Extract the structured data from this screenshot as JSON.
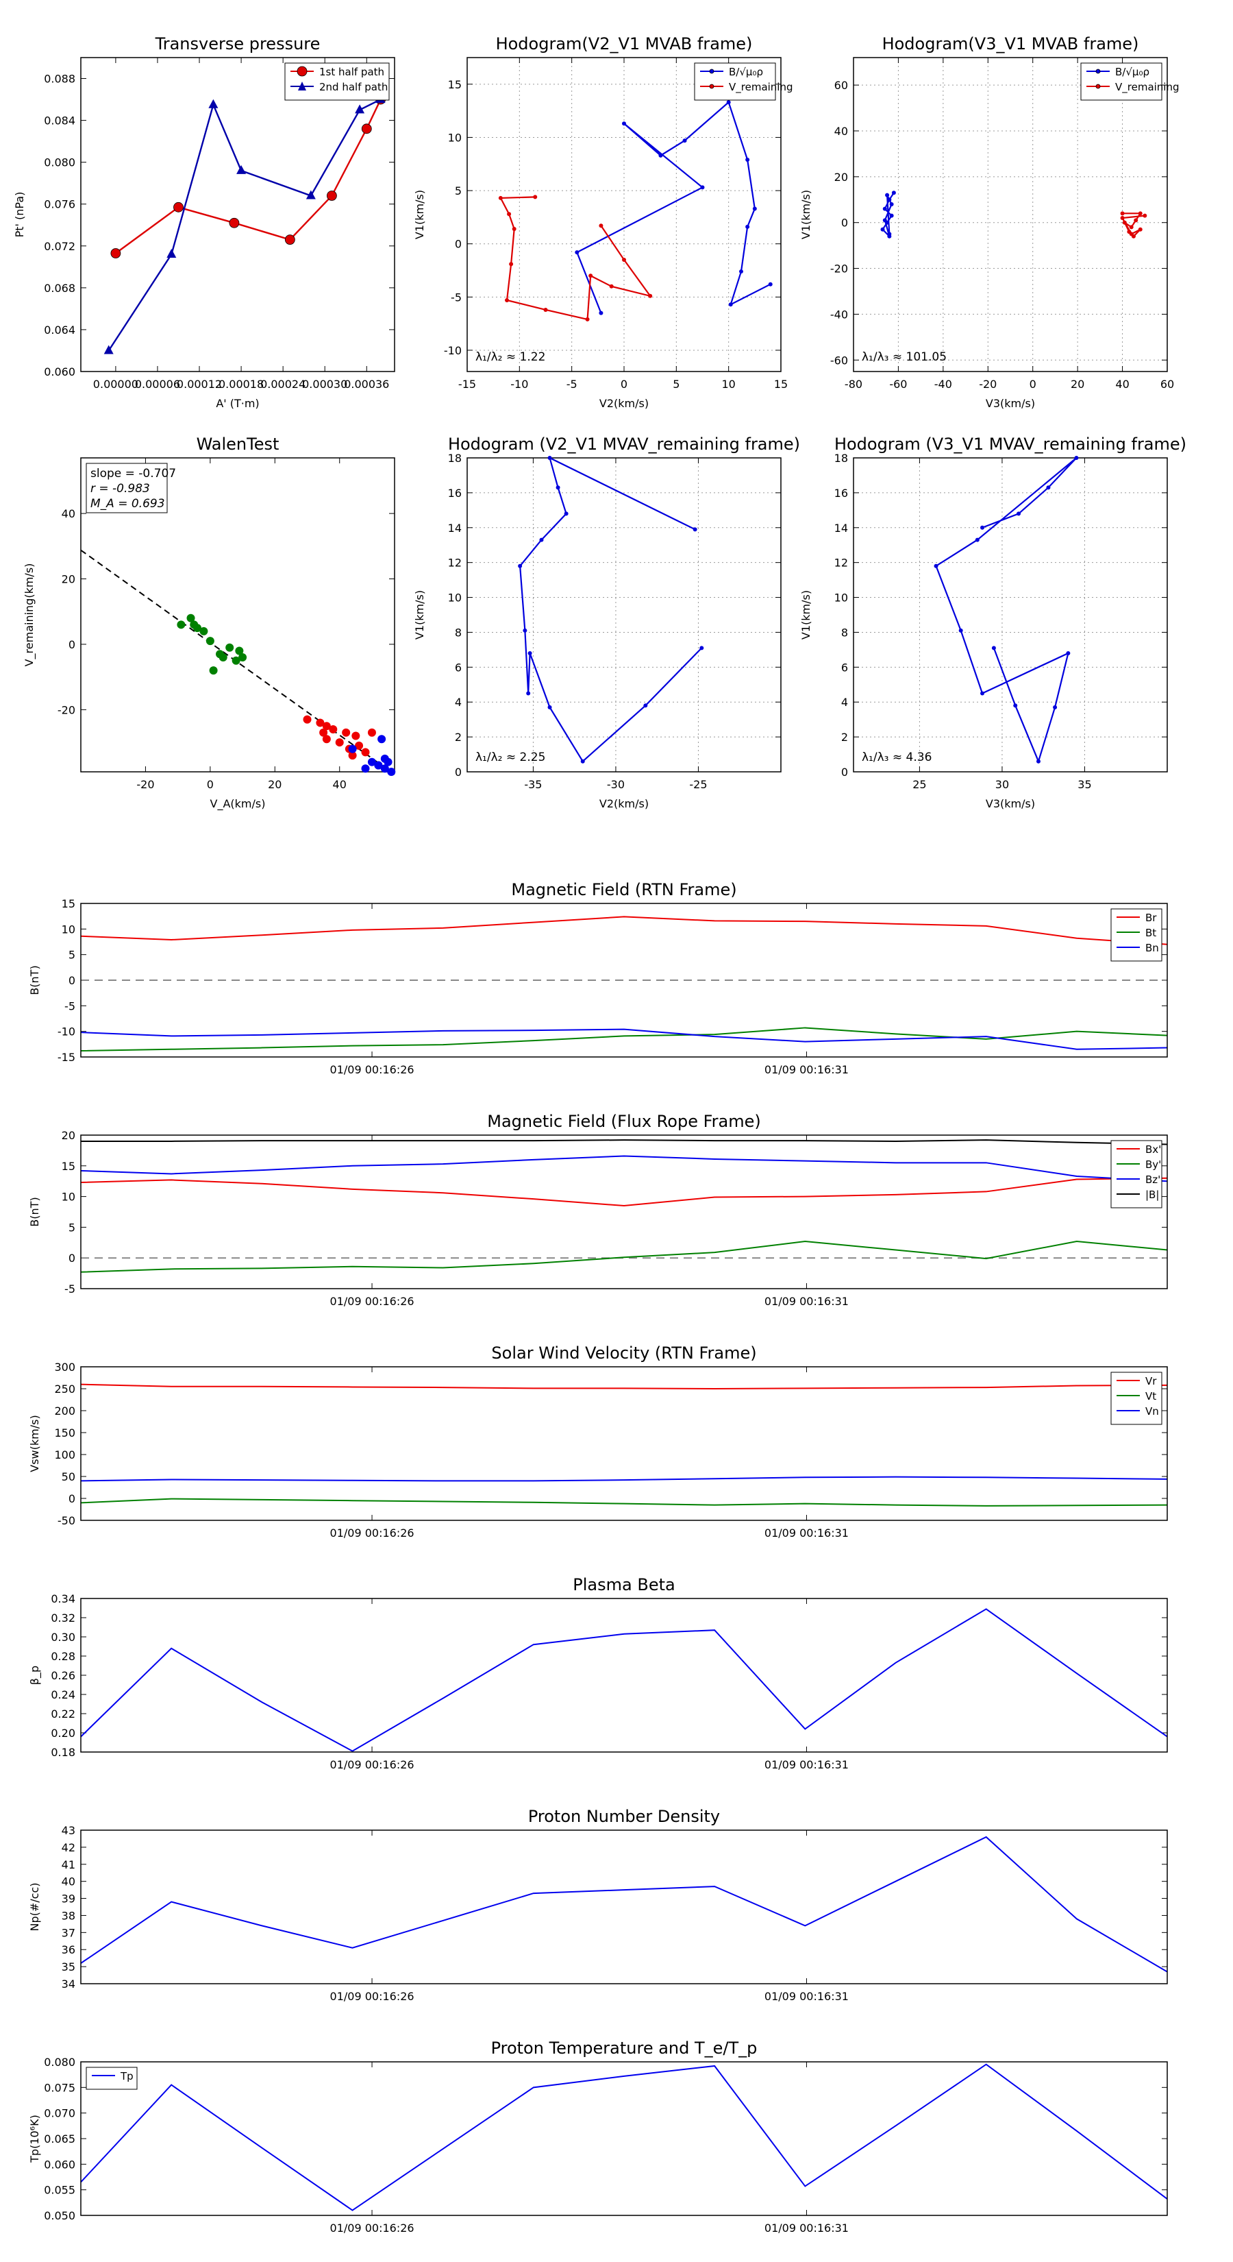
{
  "time_labels": {
    "t1": "01/09 00:16:26",
    "t2": "01/09 00:16:31"
  },
  "chart_data": [
    {
      "id": "tp",
      "type": "line",
      "title": "Transverse pressure",
      "xlabel": "A' (T·m)",
      "ylabel": "Pt' (nPa)",
      "xlim": [
        -5e-05,
        0.0004
      ],
      "ylim": [
        0.06,
        0.09
      ],
      "xticks": [
        "0.00000",
        "0.00006",
        "0.00012",
        "0.00018",
        "0.00024",
        "0.00030",
        "0.00036"
      ],
      "xtick_values": [
        0,
        6e-05,
        0.00012,
        0.00018,
        0.00024,
        0.0003,
        0.00036
      ],
      "yticks": [
        "0.060",
        "0.064",
        "0.068",
        "0.072",
        "0.076",
        "0.080",
        "0.084",
        "0.088"
      ],
      "ytick_values": [
        0.06,
        0.064,
        0.068,
        0.072,
        0.076,
        0.08,
        0.084,
        0.088
      ],
      "legend": "top-right",
      "series": [
        {
          "name": "1st half path",
          "color": "#dd0000",
          "marker": "circle",
          "x": [
            0.0,
            9e-05,
            0.00017,
            0.00025,
            0.00031,
            0.00036,
            0.00038
          ],
          "y": [
            0.0713,
            0.0757,
            0.0742,
            0.0726,
            0.0768,
            0.0832,
            0.086
          ]
        },
        {
          "name": "2nd half path",
          "color": "#0000aa",
          "marker": "triangle",
          "x": [
            -1e-05,
            8e-05,
            0.00014,
            0.00018,
            0.00028,
            0.00035,
            0.00038
          ],
          "y": [
            0.062,
            0.0712,
            0.0855,
            0.0792,
            0.0768,
            0.085,
            0.086
          ]
        }
      ]
    },
    {
      "id": "h1",
      "type": "line",
      "title": "Hodogram(V2_V1 MVAB frame)",
      "xlabel": "V2(km/s)",
      "ylabel": "V1(km/s)",
      "xlim": [
        -15,
        15
      ],
      "ylim": [
        -12,
        17.5
      ],
      "xticks": [
        "-15",
        "-10",
        "-5",
        "0",
        "5",
        "10",
        "15"
      ],
      "xtick_values": [
        -15,
        -10,
        -5,
        0,
        5,
        10,
        15
      ],
      "yticks": [
        "-10",
        "-5",
        "0",
        "5",
        "10",
        "15"
      ],
      "ytick_values": [
        -10,
        -5,
        0,
        5,
        10,
        15
      ],
      "grid": true,
      "legend": "top-right",
      "annotation": "λ₁/λ₂ ≈ 1.22",
      "series": [
        {
          "name": "B/√μ₀ρ",
          "color": "#0000dd",
          "x": [
            -2.2,
            -4.5,
            7.5,
            0,
            3.5,
            5.8,
            10,
            11.8,
            12.5,
            11.8,
            11.2,
            10.2,
            14
          ],
          "y": [
            -6.5,
            -0.8,
            5.3,
            11.3,
            8.3,
            9.7,
            13.3,
            7.9,
            3.3,
            1.6,
            -2.6,
            -5.7,
            -3.8
          ]
        },
        {
          "name": "V_remaining",
          "color": "#dd0000",
          "x": [
            -8.5,
            -11.8,
            -11,
            -10.5,
            -10.8,
            -11.2,
            -7.5,
            -3.5,
            -3.2,
            -1.2,
            2.5,
            0,
            -2.2
          ],
          "y": [
            4.4,
            4.3,
            2.8,
            1.4,
            -1.9,
            -5.3,
            -6.2,
            -7.1,
            -3.0,
            -4.0,
            -4.9,
            -1.5,
            1.7
          ]
        }
      ]
    },
    {
      "id": "h2",
      "type": "line",
      "title": "Hodogram(V3_V1 MVAB frame)",
      "xlabel": "V3(km/s)",
      "ylabel": "V1(km/s)",
      "xlim": [
        -80,
        60
      ],
      "ylim": [
        -65,
        72
      ],
      "xticks": [
        "-80",
        "-60",
        "-40",
        "-20",
        "0",
        "20",
        "40",
        "60"
      ],
      "xtick_values": [
        -80,
        -60,
        -40,
        -20,
        0,
        20,
        40,
        60
      ],
      "yticks": [
        "-60",
        "-40",
        "-20",
        "0",
        "20",
        "40",
        "60"
      ],
      "ytick_values": [
        -60,
        -40,
        -20,
        0,
        20,
        40,
        60
      ],
      "grid": true,
      "legend": "top-right",
      "annotation": "λ₁/λ₃ ≈ 101.05",
      "series": [
        {
          "name": "B/√μ₀ρ",
          "color": "#0000dd",
          "x": [
            -62,
            -64,
            -66,
            -63,
            -65,
            -67,
            -64,
            -66,
            -63,
            -65,
            -64
          ],
          "y": [
            13,
            10,
            6,
            3,
            0,
            -3,
            -6,
            1,
            8,
            12,
            -5
          ]
        },
        {
          "name": "V_remaining",
          "color": "#dd0000",
          "x": [
            40,
            48,
            46,
            44,
            41,
            43,
            45,
            48,
            44,
            40,
            50
          ],
          "y": [
            4,
            4,
            1,
            -2,
            0,
            -4,
            -6,
            -3,
            -5,
            2,
            3
          ]
        }
      ]
    },
    {
      "id": "walen",
      "type": "scatter",
      "title": "WalenTest",
      "xlabel": "V_A(km/s)",
      "ylabel": "V_remaining(km/s)",
      "xlim": [
        -40,
        57
      ],
      "ylim": [
        -39,
        57
      ],
      "xticks": [
        "-20",
        "0",
        "20",
        "40"
      ],
      "xtick_values": [
        -20,
        0,
        20,
        40
      ],
      "yticks": [
        "-20",
        "0",
        "20",
        "40"
      ],
      "ytick_values": [
        -20,
        0,
        20,
        40
      ],
      "stats": {
        "slope": "slope = -0.707",
        "r": "r = -0.983",
        "ma": "M_A = 0.693"
      },
      "fit": {
        "slope": -0.707,
        "intercept": 0.5
      },
      "series": [
        {
          "name": "green",
          "color": "#008000",
          "x": [
            -9,
            -6,
            -5,
            -4,
            -2,
            0,
            1,
            3,
            4,
            6,
            8,
            9,
            10
          ],
          "y": [
            6,
            8,
            6,
            5,
            4,
            1,
            -8,
            -3,
            -4,
            -1,
            -5,
            -2,
            -4
          ]
        },
        {
          "name": "red",
          "color": "#ee0000",
          "x": [
            30,
            34,
            35,
            36,
            36,
            38,
            40,
            42,
            43,
            45,
            44,
            46,
            48,
            50
          ],
          "y": [
            -23,
            -24,
            -27,
            -29,
            -25,
            -26,
            -30,
            -27,
            -32,
            -28,
            -34,
            -31,
            -33,
            -27
          ]
        },
        {
          "name": "blue",
          "color": "#0000ee",
          "x": [
            44,
            48,
            50,
            52,
            53,
            54,
            55,
            56,
            52,
            54
          ],
          "y": [
            -32,
            -38,
            -36,
            -37,
            -29,
            -38,
            -36,
            -39,
            -37,
            -35
          ]
        }
      ]
    },
    {
      "id": "h3",
      "type": "line",
      "title": "Hodogram (V2_V1 MVAV_remaining frame)",
      "xlabel": "V2(km/s)",
      "ylabel": "V1(km/s)",
      "xlim": [
        -39,
        -20
      ],
      "ylim": [
        0,
        18
      ],
      "xticks": [
        "-35",
        "-30",
        "-25"
      ],
      "xtick_values": [
        -35,
        -30,
        -25
      ],
      "yticks": [
        "0",
        "2",
        "4",
        "6",
        "8",
        "10",
        "12",
        "14",
        "16",
        "18"
      ],
      "ytick_values": [
        0,
        2,
        4,
        6,
        8,
        10,
        12,
        14,
        16,
        18
      ],
      "grid": true,
      "annotation": "λ₁/λ₂ ≈ 2.25",
      "series": [
        {
          "name": "path",
          "color": "#0000dd",
          "x": [
            -25.2,
            -34,
            -33.5,
            -33,
            -34.5,
            -35.8,
            -35.5,
            -35.3,
            -35.2,
            -34,
            -32,
            -28.2,
            -24.8
          ],
          "y": [
            13.9,
            18.0,
            16.3,
            14.8,
            13.3,
            11.8,
            8.1,
            4.5,
            6.8,
            3.7,
            0.6,
            3.8,
            7.1
          ]
        }
      ]
    },
    {
      "id": "h4",
      "type": "line",
      "title": "Hodogram (V3_V1 MVAV_remaining frame)",
      "xlabel": "V3(km/s)",
      "ylabel": "V1(km/s)",
      "xlim": [
        21,
        40
      ],
      "ylim": [
        0,
        18
      ],
      "xticks": [
        "25",
        "30",
        "35"
      ],
      "xtick_values": [
        25,
        30,
        35
      ],
      "yticks": [
        "0",
        "2",
        "4",
        "6",
        "8",
        "10",
        "12",
        "14",
        "16",
        "18"
      ],
      "ytick_values": [
        0,
        2,
        4,
        6,
        8,
        10,
        12,
        14,
        16,
        18
      ],
      "grid": true,
      "annotation": "λ₁/λ₃ ≈ 4.36",
      "series": [
        {
          "name": "path",
          "color": "#0000dd",
          "x": [
            28.8,
            31,
            32.8,
            34.5,
            28.5,
            26,
            27.5,
            28.8,
            34,
            33.2,
            32.2,
            30.8,
            29.5
          ],
          "y": [
            14.0,
            14.8,
            16.3,
            18.0,
            13.3,
            11.8,
            8.1,
            4.5,
            6.8,
            3.7,
            0.6,
            3.8,
            7.1
          ]
        }
      ]
    },
    {
      "id": "ts1",
      "type": "line",
      "title": "Magnetic Field (RTN Frame)",
      "ylabel": "B(nT)",
      "ylim": [
        -15,
        15
      ],
      "yticks": [
        "-15",
        "-10",
        "-5",
        "0",
        "5",
        "10",
        "15"
      ],
      "ytick_values": [
        -15,
        -10,
        -5,
        0,
        5,
        10,
        15
      ],
      "zero_line": true,
      "legend": "top-right",
      "series": [
        {
          "name": "Br",
          "color": "#ee0000",
          "values": [
            8.6,
            7.9,
            8.8,
            9.8,
            10.2,
            11.3,
            12.4,
            11.6,
            11.5,
            11.0,
            10.6,
            8.2,
            7.0
          ]
        },
        {
          "name": "Bt",
          "color": "#008000",
          "values": [
            -13.8,
            -13.5,
            -13.2,
            -12.8,
            -12.6,
            -11.8,
            -10.9,
            -10.6,
            -9.3,
            -10.5,
            -11.5,
            -10.0,
            -10.8
          ]
        },
        {
          "name": "Bn",
          "color": "#0000ee",
          "values": [
            -10.2,
            -10.9,
            -10.7,
            -10.3,
            -9.9,
            -9.8,
            -9.6,
            -11.0,
            -12.0,
            -11.5,
            -11.0,
            -13.5,
            -13.2
          ]
        }
      ]
    },
    {
      "id": "ts2",
      "type": "line",
      "title": "Magnetic Field (Flux Rope Frame)",
      "ylabel": "B(nT)",
      "ylim": [
        -5,
        20
      ],
      "yticks": [
        "-5",
        "0",
        "5",
        "10",
        "15",
        "20"
      ],
      "ytick_values": [
        -5,
        0,
        5,
        10,
        15,
        20
      ],
      "zero_line": true,
      "legend": "top-right",
      "series": [
        {
          "name": "Bx'",
          "color": "#ee0000",
          "values": [
            12.3,
            12.7,
            12.1,
            11.2,
            10.6,
            9.6,
            8.5,
            9.9,
            10.0,
            10.3,
            10.8,
            12.8,
            13.0
          ]
        },
        {
          "name": "By'",
          "color": "#008000",
          "values": [
            -2.3,
            -1.8,
            -1.7,
            -1.4,
            -1.6,
            -0.9,
            0.1,
            0.9,
            2.7,
            1.3,
            -0.1,
            2.7,
            1.3
          ]
        },
        {
          "name": "Bz'",
          "color": "#0000ee",
          "values": [
            14.2,
            13.7,
            14.3,
            15.0,
            15.3,
            16.0,
            16.6,
            16.1,
            15.8,
            15.5,
            15.5,
            13.3,
            12.5
          ]
        },
        {
          "name": "|B|",
          "color": "#000000",
          "values": [
            19.0,
            19.0,
            19.1,
            19.1,
            19.1,
            19.1,
            19.2,
            19.1,
            19.1,
            19.0,
            19.2,
            18.8,
            18.5
          ]
        }
      ]
    },
    {
      "id": "ts3",
      "type": "line",
      "title": "Solar Wind Velocity (RTN Frame)",
      "ylabel": "Vsw(km/s)",
      "ylim": [
        -50,
        300
      ],
      "yticks": [
        "-50",
        "0",
        "50",
        "100",
        "150",
        "200",
        "250",
        "300"
      ],
      "ytick_values": [
        -50,
        0,
        50,
        100,
        150,
        200,
        250,
        300
      ],
      "legend": "top-right",
      "series": [
        {
          "name": "Vr",
          "color": "#ee0000",
          "values": [
            260,
            255,
            255,
            254,
            253,
            251,
            251,
            250,
            251,
            252,
            253,
            257,
            258
          ]
        },
        {
          "name": "Vt",
          "color": "#008000",
          "values": [
            -10,
            -1,
            -3,
            -5,
            -7,
            -9,
            -12,
            -15,
            -12,
            -15,
            -17,
            -16,
            -15
          ]
        },
        {
          "name": "Vn",
          "color": "#0000ee",
          "values": [
            40,
            43,
            42,
            41,
            40,
            40,
            42,
            45,
            48,
            49,
            48,
            46,
            44
          ]
        }
      ]
    },
    {
      "id": "ts4",
      "type": "line",
      "title": "Plasma Beta",
      "ylabel": "β_p",
      "ylim": [
        0.18,
        0.34
      ],
      "yticks": [
        "0.18",
        "0.20",
        "0.22",
        "0.24",
        "0.26",
        "0.28",
        "0.30",
        "0.32",
        "0.34"
      ],
      "ytick_values": [
        0.18,
        0.2,
        0.22,
        0.24,
        0.26,
        0.28,
        0.3,
        0.32,
        0.34
      ],
      "series": [
        {
          "name": "beta",
          "color": "#0000ee",
          "values": [
            0.196,
            0.288,
            0.232,
            0.181,
            0.236,
            0.292,
            0.303,
            0.307,
            0.204,
            0.273,
            0.329,
            0.262,
            0.196
          ]
        }
      ]
    },
    {
      "id": "ts5",
      "type": "line",
      "title": "Proton Number Density",
      "ylabel": "Np(#/cc)",
      "ylim": [
        34,
        43
      ],
      "yticks": [
        "34",
        "35",
        "36",
        "37",
        "38",
        "39",
        "40",
        "41",
        "42",
        "43"
      ],
      "ytick_values": [
        34,
        35,
        36,
        37,
        38,
        39,
        40,
        41,
        42,
        43
      ],
      "series": [
        {
          "name": "Np",
          "color": "#0000ee",
          "values": [
            35.2,
            38.8,
            37.4,
            36.1,
            37.7,
            39.3,
            39.5,
            39.7,
            37.4,
            40.0,
            42.6,
            37.8,
            34.7
          ]
        }
      ]
    },
    {
      "id": "ts6",
      "type": "line",
      "title": "Proton Temperature and T_e/T_p",
      "ylabel": "Tp(10⁶K)",
      "ylim": [
        0.05,
        0.08
      ],
      "yticks": [
        "0.050",
        "0.055",
        "0.060",
        "0.065",
        "0.070",
        "0.075",
        "0.080"
      ],
      "ytick_values": [
        0.05,
        0.055,
        0.06,
        0.065,
        0.07,
        0.075,
        0.08
      ],
      "legend": "top-left",
      "series": [
        {
          "name": "Tp",
          "color": "#0000ee",
          "values": [
            0.0565,
            0.0755,
            0.0632,
            0.051,
            0.063,
            0.075,
            0.0772,
            0.0792,
            0.0557,
            0.0675,
            0.0795,
            0.0665,
            0.0532
          ]
        }
      ]
    }
  ]
}
